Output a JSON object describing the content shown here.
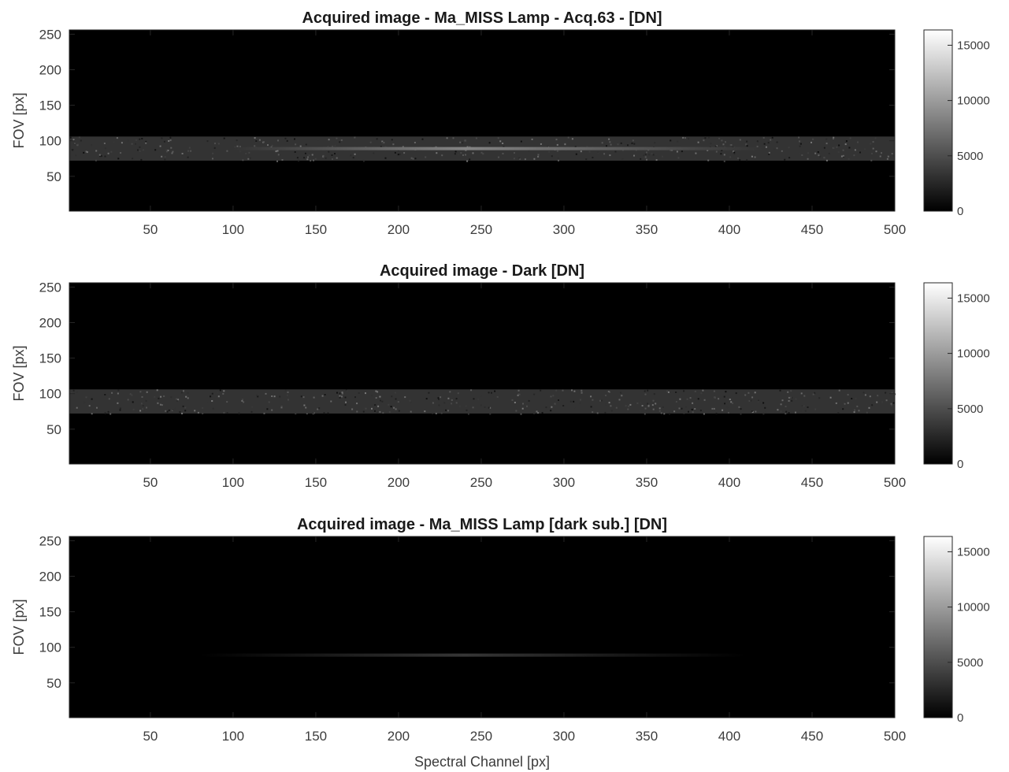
{
  "chart_data": [
    {
      "type": "heatmap",
      "title": "Acquired image - Ma_MISS Lamp - Acq.63 - [DN]",
      "xlabel": "",
      "ylabel": "FOV [px]",
      "xlim": [
        1,
        500
      ],
      "ylim": [
        1,
        256
      ],
      "xticks": [
        "50",
        "100",
        "150",
        "200",
        "250",
        "300",
        "350",
        "400",
        "450",
        "500"
      ],
      "yticks": [
        "50",
        "100",
        "150",
        "200",
        "250"
      ],
      "colormap": "gray",
      "clim": [
        0,
        16383
      ],
      "colorbar_ticks": [
        "0",
        "5000",
        "10000",
        "15000"
      ],
      "background_dn": 0,
      "band": {
        "fov_min": 72,
        "fov_max": 106,
        "dn": 3300
      },
      "line_feature": {
        "fov": 89,
        "channel_range": [
          100,
          420
        ],
        "peak_channel": 240,
        "peak_dn": 8500
      }
    },
    {
      "type": "heatmap",
      "title": "Acquired image - Dark [DN]",
      "xlabel": "",
      "ylabel": "FOV [px]",
      "xlim": [
        1,
        500
      ],
      "ylim": [
        1,
        256
      ],
      "xticks": [
        "50",
        "100",
        "150",
        "200",
        "250",
        "300",
        "350",
        "400",
        "450",
        "500"
      ],
      "yticks": [
        "50",
        "100",
        "150",
        "200",
        "250"
      ],
      "colormap": "gray",
      "clim": [
        0,
        16383
      ],
      "colorbar_ticks": [
        "0",
        "5000",
        "10000",
        "15000"
      ],
      "background_dn": 0,
      "band": {
        "fov_min": 72,
        "fov_max": 106,
        "dn": 3300
      }
    },
    {
      "type": "heatmap",
      "title": "Acquired image - Ma_MISS Lamp [dark sub.] [DN]",
      "xlabel": "Spectral Channel [px]",
      "ylabel": "FOV [px]",
      "xlim": [
        1,
        500
      ],
      "ylim": [
        1,
        256
      ],
      "xticks": [
        "50",
        "100",
        "150",
        "200",
        "250",
        "300",
        "350",
        "400",
        "450",
        "500"
      ],
      "yticks": [
        "50",
        "100",
        "150",
        "200",
        "250"
      ],
      "colormap": "gray",
      "clim": [
        0,
        16383
      ],
      "colorbar_ticks": [
        "0",
        "5000",
        "10000",
        "15000"
      ],
      "background_dn": 0,
      "line_feature": {
        "fov": 89,
        "channel_range": [
          80,
          410
        ],
        "peak_channel": 240,
        "peak_dn": 3500
      }
    }
  ]
}
